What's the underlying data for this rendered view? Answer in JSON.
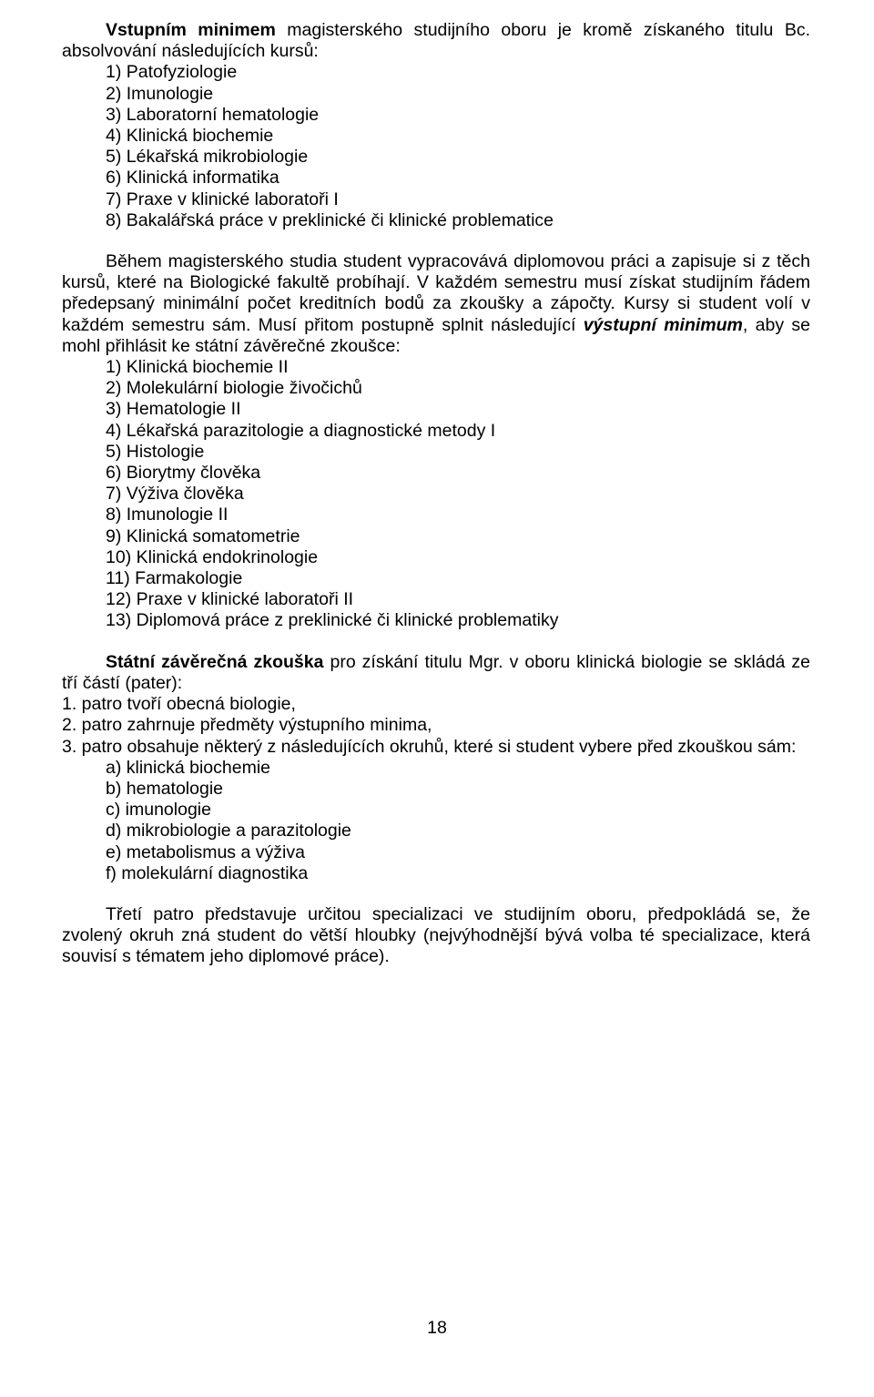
{
  "intro_para": {
    "bold_lead": "Vstupním minimem",
    "rest": " magisterského studijního oboru je kromě získaného titulu Bc. absolvování následujících kursů:"
  },
  "input_list": [
    "1) Patofyziologie",
    "2) Imunologie",
    "3) Laboratorní hematologie",
    "4) Klinická biochemie",
    "5) Lékařská mikrobiologie",
    "6) Klinická informatika",
    "7) Praxe v klinické laboratoři I",
    "8) Bakalářská práce v preklinické či klinické problematice"
  ],
  "mid_para": {
    "p1": "Během magisterského studia student vypracovává diplomovou práci a zapisuje si z těch kursů, které na Biologické fakultě probíhají. V každém semestru musí získat studijním řádem předepsaný minimální počet kreditních bodů za zkoušky a zápočty. Kursy si student volí v každém semestru sám. Musí přitom postupně splnit následující ",
    "bi": "výstupní minimum",
    "p2": ", aby se mohl přihlásit ke státní závěrečné zkoušce:"
  },
  "output_list": [
    "1) Klinická biochemie II",
    "2) Molekulární biologie živočichů",
    "3) Hematologie II",
    "4) Lékařská parazitologie a diagnostické metody I",
    "5) Histologie",
    "6) Biorytmy člověka",
    "7) Výživa člověka",
    "8) Imunologie II",
    "9) Klinická somatometrie",
    "10) Klinická endokrinologie",
    "11) Farmakologie",
    "12) Praxe v klinické laboratoři  II",
    "13) Diplomová práce z preklinické či klinické problematiky"
  ],
  "exam_para": {
    "bold_lead": "Státní závěrečná zkouška",
    "rest": " pro získání titulu Mgr. v oboru klinická biologie se skládá ze tří částí (pater):"
  },
  "tiers": {
    "t1": "1. patro tvoří obecná biologie,",
    "t2": "2. patro zahrnuje předměty výstupního minima,",
    "t3": "3. patro obsahuje některý z následujících okruhů, které si student vybere před zkouškou sám:"
  },
  "tier3_list": [
    "a) klinická biochemie",
    "b) hematologie",
    "c) imunologie",
    "d) mikrobiologie a parazitologie",
    "e) metabolismus a výživa",
    "f) molekulární diagnostika"
  ],
  "closing_para": "Třetí patro představuje určitou specializaci ve studijním oboru, předpokládá se, že zvolený okruh zná student do větší hloubky (nejvýhodnější bývá volba té specializace, která souvisí s tématem jeho diplomové práce).",
  "page_number": "18"
}
